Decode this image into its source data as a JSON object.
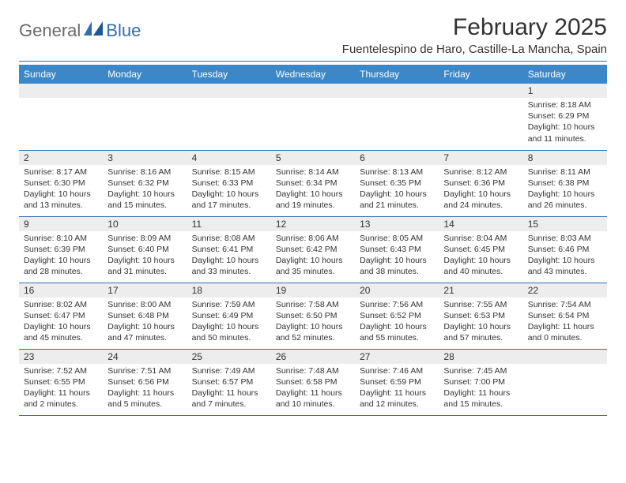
{
  "logo": {
    "text1": "General",
    "text2": "Blue"
  },
  "title": "February 2025",
  "subtitle": "Fuentelespino de Haro, Castille-La Mancha, Spain",
  "colors": {
    "header_bg": "#3b87c8",
    "border": "#2f6fb0",
    "daynum_bg": "#ededed",
    "text": "#333333",
    "page_bg": "#ffffff",
    "logo_gray": "#6a6a6a",
    "logo_blue": "#2f6fb0"
  },
  "weekdays": [
    "Sunday",
    "Monday",
    "Tuesday",
    "Wednesday",
    "Thursday",
    "Friday",
    "Saturday"
  ],
  "weeks": [
    [
      null,
      null,
      null,
      null,
      null,
      null,
      {
        "n": "1",
        "sunrise": "8:18 AM",
        "sunset": "6:29 PM",
        "daylight": "10 hours and 11 minutes."
      }
    ],
    [
      {
        "n": "2",
        "sunrise": "8:17 AM",
        "sunset": "6:30 PM",
        "daylight": "10 hours and 13 minutes."
      },
      {
        "n": "3",
        "sunrise": "8:16 AM",
        "sunset": "6:32 PM",
        "daylight": "10 hours and 15 minutes."
      },
      {
        "n": "4",
        "sunrise": "8:15 AM",
        "sunset": "6:33 PM",
        "daylight": "10 hours and 17 minutes."
      },
      {
        "n": "5",
        "sunrise": "8:14 AM",
        "sunset": "6:34 PM",
        "daylight": "10 hours and 19 minutes."
      },
      {
        "n": "6",
        "sunrise": "8:13 AM",
        "sunset": "6:35 PM",
        "daylight": "10 hours and 21 minutes."
      },
      {
        "n": "7",
        "sunrise": "8:12 AM",
        "sunset": "6:36 PM",
        "daylight": "10 hours and 24 minutes."
      },
      {
        "n": "8",
        "sunrise": "8:11 AM",
        "sunset": "6:38 PM",
        "daylight": "10 hours and 26 minutes."
      }
    ],
    [
      {
        "n": "9",
        "sunrise": "8:10 AM",
        "sunset": "6:39 PM",
        "daylight": "10 hours and 28 minutes."
      },
      {
        "n": "10",
        "sunrise": "8:09 AM",
        "sunset": "6:40 PM",
        "daylight": "10 hours and 31 minutes."
      },
      {
        "n": "11",
        "sunrise": "8:08 AM",
        "sunset": "6:41 PM",
        "daylight": "10 hours and 33 minutes."
      },
      {
        "n": "12",
        "sunrise": "8:06 AM",
        "sunset": "6:42 PM",
        "daylight": "10 hours and 35 minutes."
      },
      {
        "n": "13",
        "sunrise": "8:05 AM",
        "sunset": "6:43 PM",
        "daylight": "10 hours and 38 minutes."
      },
      {
        "n": "14",
        "sunrise": "8:04 AM",
        "sunset": "6:45 PM",
        "daylight": "10 hours and 40 minutes."
      },
      {
        "n": "15",
        "sunrise": "8:03 AM",
        "sunset": "6:46 PM",
        "daylight": "10 hours and 43 minutes."
      }
    ],
    [
      {
        "n": "16",
        "sunrise": "8:02 AM",
        "sunset": "6:47 PM",
        "daylight": "10 hours and 45 minutes."
      },
      {
        "n": "17",
        "sunrise": "8:00 AM",
        "sunset": "6:48 PM",
        "daylight": "10 hours and 47 minutes."
      },
      {
        "n": "18",
        "sunrise": "7:59 AM",
        "sunset": "6:49 PM",
        "daylight": "10 hours and 50 minutes."
      },
      {
        "n": "19",
        "sunrise": "7:58 AM",
        "sunset": "6:50 PM",
        "daylight": "10 hours and 52 minutes."
      },
      {
        "n": "20",
        "sunrise": "7:56 AM",
        "sunset": "6:52 PM",
        "daylight": "10 hours and 55 minutes."
      },
      {
        "n": "21",
        "sunrise": "7:55 AM",
        "sunset": "6:53 PM",
        "daylight": "10 hours and 57 minutes."
      },
      {
        "n": "22",
        "sunrise": "7:54 AM",
        "sunset": "6:54 PM",
        "daylight": "11 hours and 0 minutes."
      }
    ],
    [
      {
        "n": "23",
        "sunrise": "7:52 AM",
        "sunset": "6:55 PM",
        "daylight": "11 hours and 2 minutes."
      },
      {
        "n": "24",
        "sunrise": "7:51 AM",
        "sunset": "6:56 PM",
        "daylight": "11 hours and 5 minutes."
      },
      {
        "n": "25",
        "sunrise": "7:49 AM",
        "sunset": "6:57 PM",
        "daylight": "11 hours and 7 minutes."
      },
      {
        "n": "26",
        "sunrise": "7:48 AM",
        "sunset": "6:58 PM",
        "daylight": "11 hours and 10 minutes."
      },
      {
        "n": "27",
        "sunrise": "7:46 AM",
        "sunset": "6:59 PM",
        "daylight": "11 hours and 12 minutes."
      },
      {
        "n": "28",
        "sunrise": "7:45 AM",
        "sunset": "7:00 PM",
        "daylight": "11 hours and 15 minutes."
      },
      null
    ]
  ],
  "labels": {
    "sunrise": "Sunrise:",
    "sunset": "Sunset:",
    "daylight": "Daylight:"
  }
}
